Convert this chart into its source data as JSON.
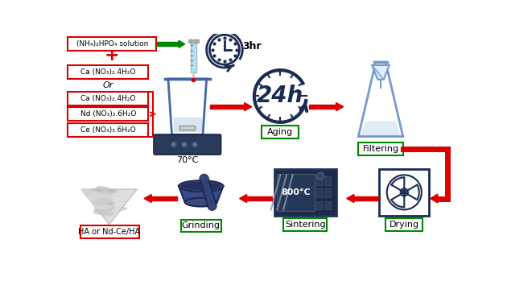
{
  "bg_color": "#ffffff",
  "red_color": "#dd0000",
  "green_color": "#008800",
  "navy": "#1a2a50",
  "light_blue": "#aad4ee",
  "box1_text": "(NH₄)₂HPO₄ solution",
  "plus_text": "+",
  "or_text": "Or",
  "box2_text": "Ca (NO₃)₂.4H₂O",
  "box3_text": "Ca (NO₃)₂.4H₂O",
  "box4_text": "Nd (NO₃)₃.6H₂O",
  "box5_text": "Ce (NO₃)₃.6H₂O",
  "temp_text": "70°C",
  "clock_text": "3hr",
  "aging_text": "24h",
  "aging_label": "Aging",
  "filtering_label": "Filtering",
  "drying_label": "Drying",
  "sintering_label": "Sintering",
  "sintering_temp": "800°C",
  "grinding_label": "Grinding",
  "ha_label": "HA or Nd-Ce/HA",
  "fig_width": 6.3,
  "fig_height": 3.54,
  "dpi": 100
}
